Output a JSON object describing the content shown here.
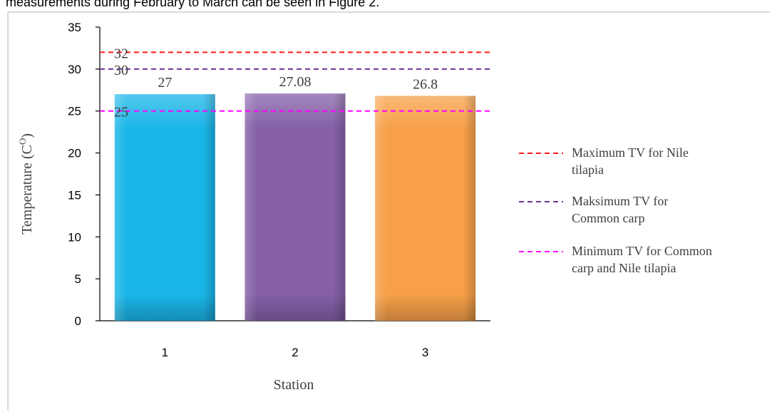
{
  "caption": "measurements during February to March can be seen in Figure 2.",
  "chart_data": {
    "type": "bar",
    "categories": [
      "1",
      "2",
      "3"
    ],
    "values": [
      27,
      27.08,
      26.8
    ],
    "data_labels": [
      "27",
      "27.08",
      "26.8"
    ],
    "bar_colors": [
      "#1ab6e8",
      "#8560a8",
      "#f7a048"
    ],
    "xlabel": "Station",
    "ylabel": "Temperature (C",
    "ylabel_sup": "O",
    "ylabel_end": ")",
    "ylim": [
      0,
      35
    ],
    "yticks": [
      0,
      5,
      10,
      15,
      20,
      25,
      30,
      35
    ],
    "grid": false,
    "legend_position": "right",
    "reference_lines": [
      {
        "value": 32,
        "label": "32",
        "color": "#ff1a1a",
        "legend_lines": [
          "Maximum TV for Nile",
          "tilapia"
        ]
      },
      {
        "value": 30,
        "label": "30",
        "color": "#7030a0",
        "legend_lines": [
          "Maksimum TV for",
          "Common carp"
        ]
      },
      {
        "value": 25,
        "label": "25",
        "color": "#ff00ff",
        "legend_lines": [
          "Minimum TV for Common",
          "carp and Nile tilapia"
        ]
      }
    ]
  }
}
